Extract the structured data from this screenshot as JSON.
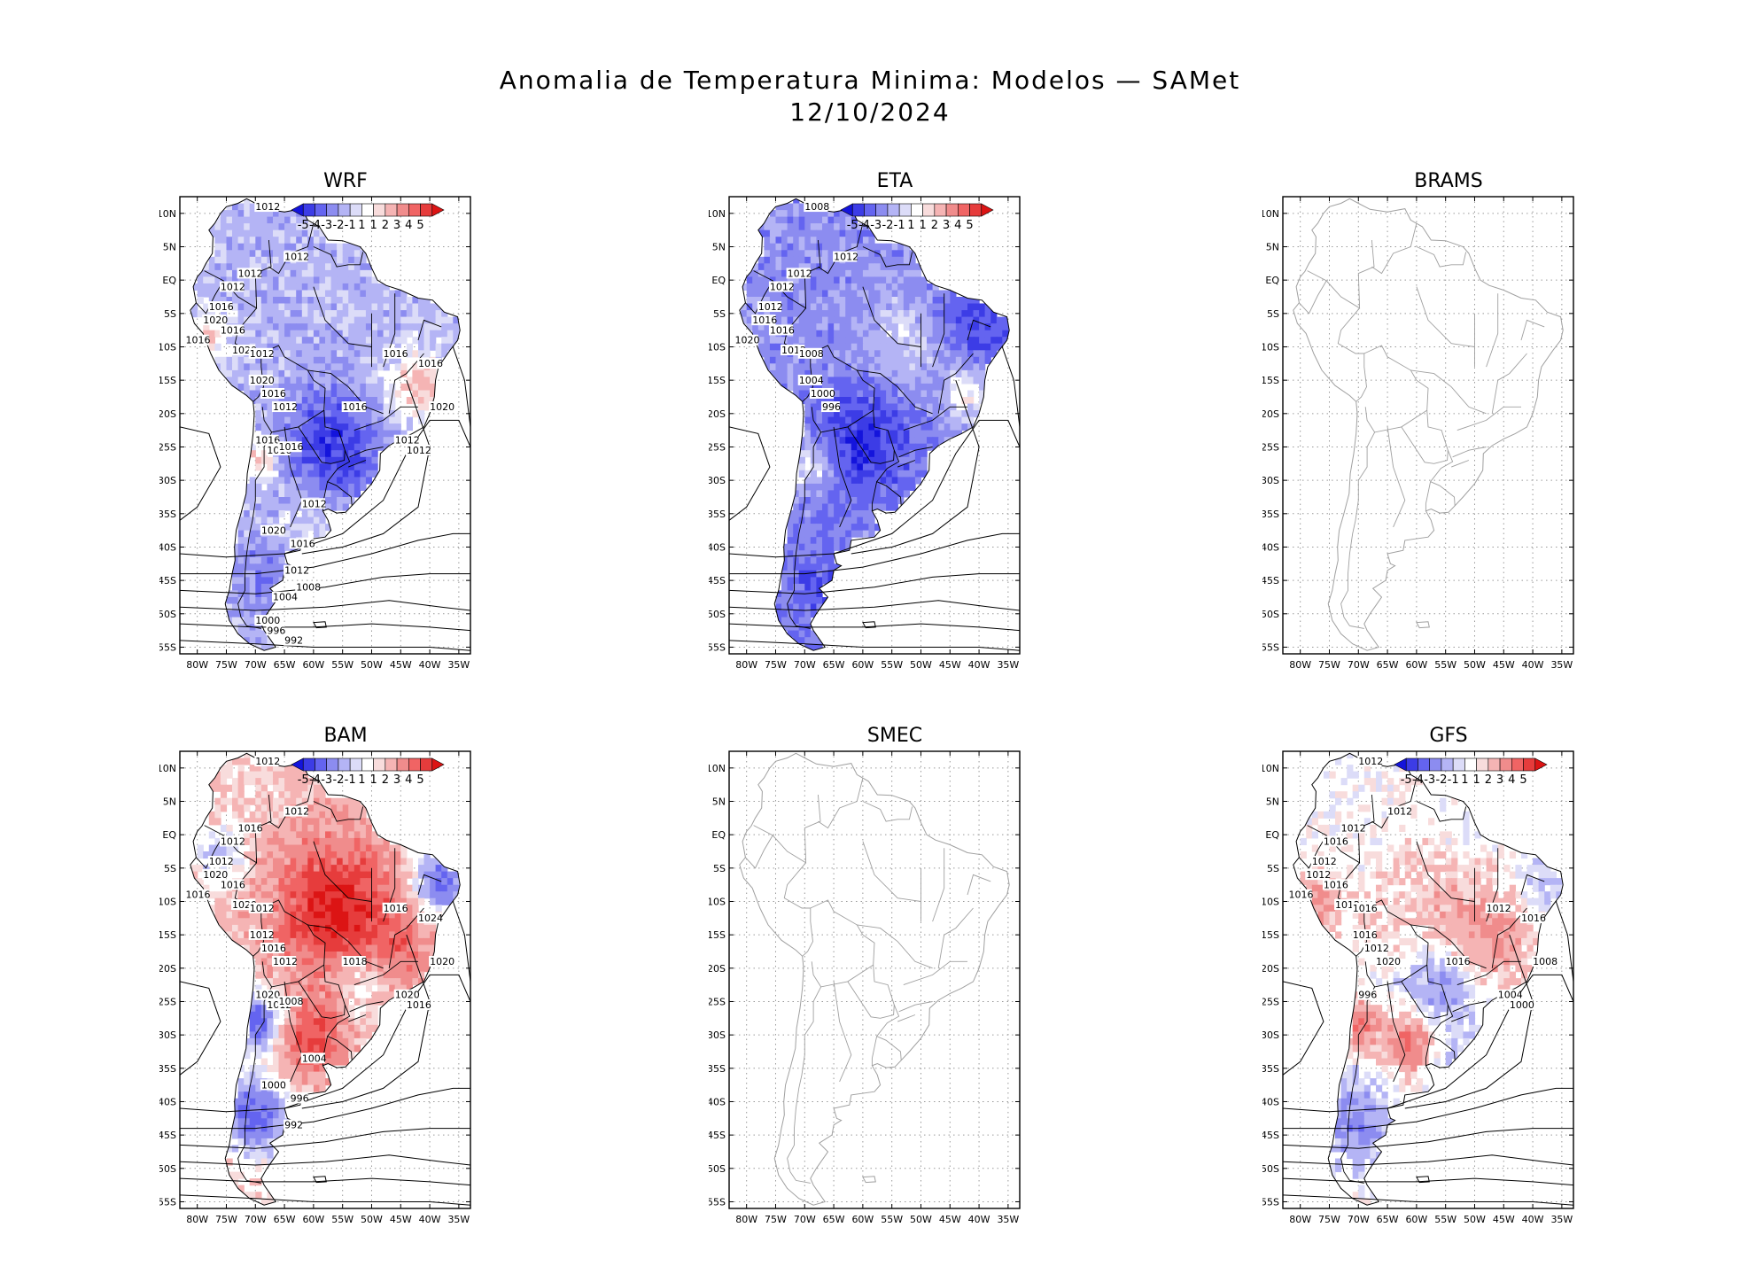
{
  "title": {
    "line1": "Anomalia de Temperatura Minima: Modelos — SAMet",
    "line2": "12/10/2024"
  },
  "lat_labels": [
    "10N",
    "5N",
    "EQ",
    "5S",
    "10S",
    "15S",
    "20S",
    "25S",
    "30S",
    "35S",
    "40S",
    "45S",
    "50S",
    "55S"
  ],
  "lon_labels": [
    "80W",
    "75W",
    "70W",
    "65W",
    "60W",
    "55W",
    "50W",
    "45W",
    "40W",
    "35W"
  ],
  "colorbar": {
    "labels": [
      "-5",
      "-4",
      "-3",
      "-2",
      "-1",
      "1",
      "1",
      "2",
      "3",
      "4",
      "5"
    ],
    "colors": [
      "#1414dc",
      "#3c3ce6",
      "#6464f0",
      "#8c8cf0",
      "#b4b4f5",
      "#dcdcf8",
      "#ffffff",
      "#f8dcdc",
      "#f5b4b4",
      "#f08c8c",
      "#f06464",
      "#e63c3c",
      "#dc1414"
    ]
  },
  "panels": [
    {
      "id": "wrf",
      "title": "WRF",
      "has_data": true,
      "pattern": "blue",
      "isobars": [
        "1012",
        "1012",
        "1012",
        "1012",
        "1016",
        "1020",
        "1016",
        "1016",
        "1020",
        "1012",
        "1020",
        "1016",
        "1012",
        "1016",
        "1016",
        "1016",
        "1020",
        "1012",
        "1012",
        "1016",
        "1016",
        "1016",
        "1012",
        "1020",
        "1016",
        "1012",
        "1008",
        "1004",
        "1000",
        "996",
        "992"
      ]
    },
    {
      "id": "eta",
      "title": "ETA",
      "has_data": true,
      "pattern": "blue-strong",
      "isobars": [
        "1008",
        "1012",
        "1012",
        "1012",
        "1012",
        "1016",
        "1016",
        "1020",
        "1012",
        "1008",
        "1004",
        "1000",
        "996"
      ]
    },
    {
      "id": "brams",
      "title": "BRAMS",
      "has_data": false,
      "pattern": "none",
      "isobars": []
    },
    {
      "id": "bam",
      "title": "BAM",
      "has_data": true,
      "pattern": "red",
      "isobars": [
        "1012",
        "1012",
        "1016",
        "1012",
        "1012",
        "1020",
        "1016",
        "1016",
        "1020",
        "1012",
        "1012",
        "1016",
        "1012",
        "1018",
        "1016",
        "1024",
        "1020",
        "1020",
        "1016",
        "1020",
        "1012",
        "1008",
        "1004",
        "1000",
        "996",
        "992"
      ]
    },
    {
      "id": "smec",
      "title": "SMEC",
      "has_data": false,
      "pattern": "none",
      "isobars": []
    },
    {
      "id": "gfs",
      "title": "GFS",
      "has_data": true,
      "pattern": "mixed",
      "isobars": [
        "1012",
        "1012",
        "1012",
        "1016",
        "1012",
        "1012",
        "1016",
        "1016",
        "1012",
        "1016",
        "1016",
        "1012",
        "1020",
        "1016",
        "1012",
        "1016",
        "1008",
        "1004",
        "1000",
        "996"
      ]
    }
  ]
}
